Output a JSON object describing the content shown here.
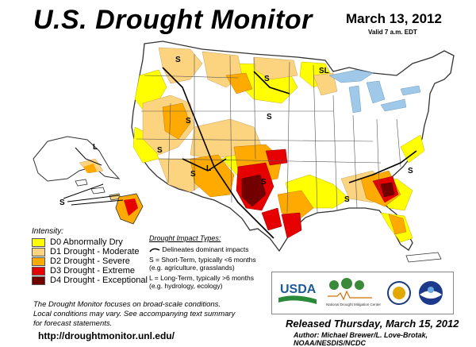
{
  "header": {
    "title": "U.S. Drought Monitor",
    "date": "March 13, 2012",
    "valid": "Valid 7 a.m. EDT"
  },
  "legend": {
    "heading": "Intensity:",
    "items": [
      {
        "label": "D0 Abnormally Dry",
        "color": "#ffff00"
      },
      {
        "label": "D1 Drought - Moderate",
        "color": "#fcd37f"
      },
      {
        "label": "D2 Drought - Severe",
        "color": "#ffaa00"
      },
      {
        "label": "D3 Drought - Extreme",
        "color": "#e60000"
      },
      {
        "label": "D4 Drought - Exceptional",
        "color": "#730000"
      }
    ]
  },
  "impact": {
    "heading": "Drought Impact Types:",
    "boundary": "Delineates dominant impacts",
    "short_term": "S = Short-Term, typically <6 months",
    "short_term_ex": "(e.g. agriculture, grasslands)",
    "long_term": "L = Long-Term, typically >6 months",
    "long_term_ex": "(e.g. hydrology, ecology)"
  },
  "map_labels": {
    "s": "S",
    "l": "L",
    "sl": "SL"
  },
  "note": {
    "line1": "The Drought Monitor focuses on broad-scale conditions.",
    "line2": "Local conditions may vary. See accompanying text summary",
    "line3": "for forecast statements."
  },
  "url": "http://droughtmonitor.unl.edu/",
  "released": "Released Thursday, March 15, 2012",
  "author": "Author: Michael Brewer/L. Love-Brotak, NOAA/NESDIS/NCDC",
  "logos": {
    "usda": "USDA",
    "ndmc": "National Drought Mitigation Center"
  }
}
